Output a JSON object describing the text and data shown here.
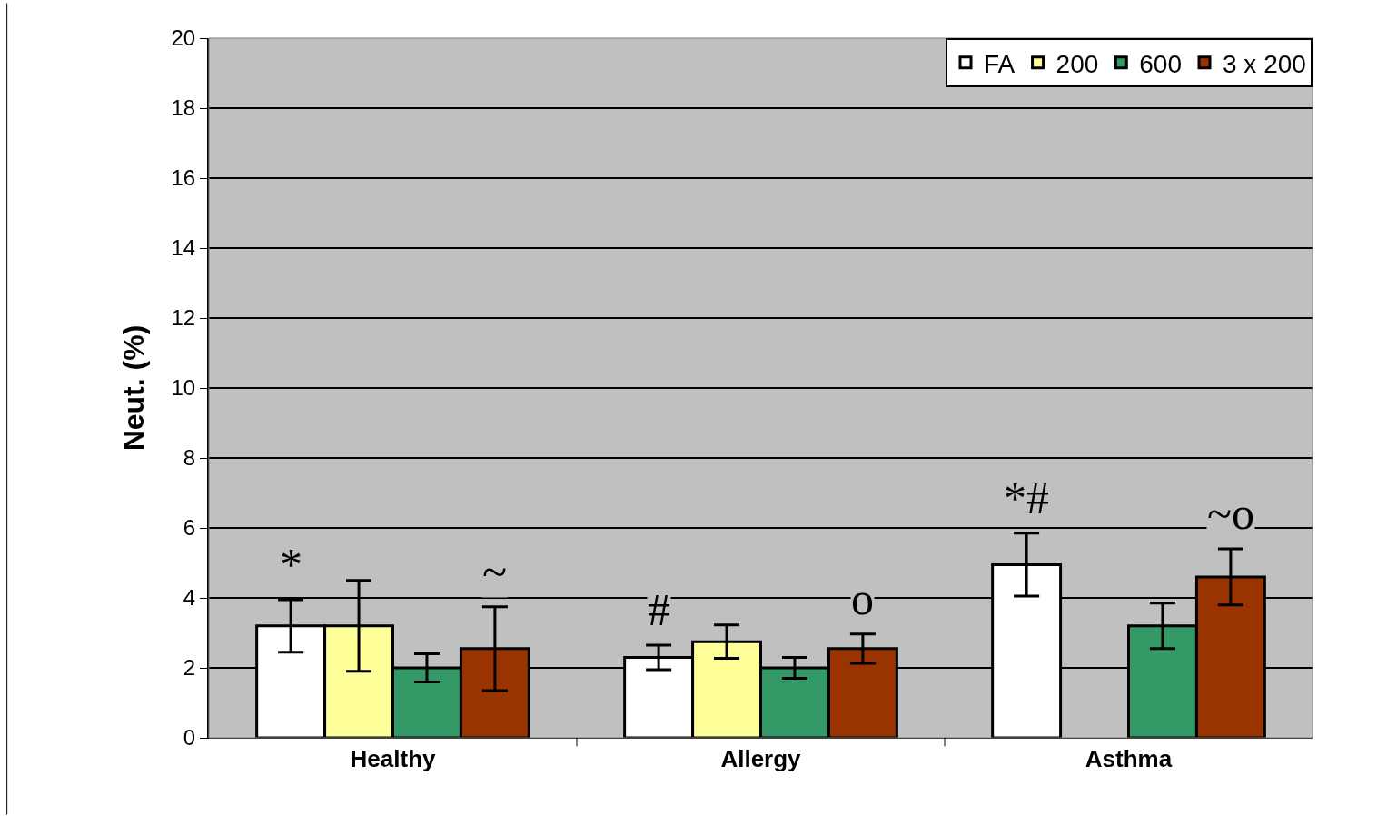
{
  "chart_data": {
    "type": "bar",
    "ylabel": "Neut. (%)",
    "categories": [
      "Healthy",
      "Allergy",
      "Asthma"
    ],
    "series": [
      {
        "name": "FA",
        "color": "#ffffff",
        "values": [
          3.2,
          2.3,
          4.95
        ],
        "errors": [
          0.75,
          0.35,
          0.9
        ],
        "value_labels": [
          "*",
          "#",
          "*#"
        ]
      },
      {
        "name": "200",
        "color": "#ffff99",
        "values": [
          3.2,
          2.75,
          null
        ],
        "errors": [
          1.3,
          0.48,
          null
        ]
      },
      {
        "name": "600",
        "color": "#339966",
        "values": [
          2.0,
          2.0,
          3.2
        ],
        "errors": [
          0.4,
          0.3,
          0.65
        ]
      },
      {
        "name": "3 x 200",
        "color": "#993300",
        "values": [
          2.55,
          2.55,
          4.6
        ],
        "errors": [
          1.2,
          0.42,
          0.8
        ],
        "value_labels": [
          "~",
          "o",
          "~o"
        ]
      }
    ],
    "ylim": [
      0,
      20
    ],
    "yticks": [
      0,
      2,
      4,
      6,
      8,
      10,
      12,
      14,
      16,
      18,
      20
    ],
    "grid": "y",
    "legend": "top right"
  }
}
